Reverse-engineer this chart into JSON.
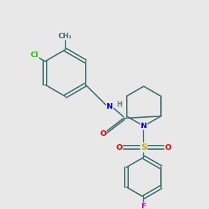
{
  "background_color": "#e8e8e8",
  "bond_color": "#3a6e6e",
  "atom_colors": {
    "Cl": "#22cc00",
    "N": "#0000ee",
    "O": "#ee0000",
    "S": "#ccaa00",
    "F": "#cc00cc",
    "H": "#7a7a7a",
    "C": "#3a6e6e"
  },
  "figsize": [
    3.0,
    3.0
  ],
  "dpi": 100
}
